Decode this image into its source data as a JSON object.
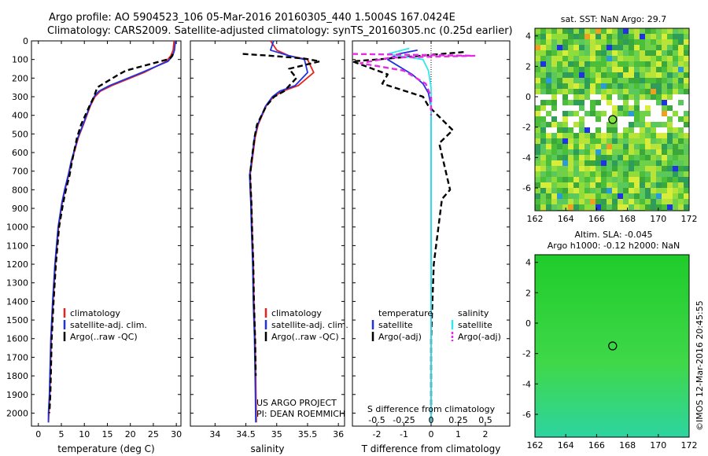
{
  "title": {
    "line1": "Argo profile: AO 5904523_106 05-Mar-2016 20160305_440 1.5004S 167.0424E",
    "line2": "Climatology: CARS2009. Satellite-adjusted climatology: synTS_20160305.nc (0.25d earlier)"
  },
  "credit": "©IMOS 12-Mar-2016 20:45:55",
  "project": {
    "line1": "US ARGO PROJECT",
    "line2": "PI: DEAN ROEMMICH"
  },
  "colors": {
    "clim": "#e8221f",
    "sat": "#1f33e0",
    "argo": "#000000",
    "salt_sat": "#33e6ee",
    "salt_argo": "#e52be5"
  },
  "chart_data": [
    {
      "id": "temperature",
      "type": "line",
      "xlabel": "temperature (deg C)",
      "xlim": [
        -1.5,
        31
      ],
      "ylim": [
        0,
        2070
      ],
      "xticks": [
        0,
        5,
        10,
        15,
        20,
        25,
        30
      ],
      "yticks": [
        0,
        100,
        200,
        300,
        400,
        500,
        600,
        700,
        800,
        900,
        1000,
        1100,
        1200,
        1300,
        1400,
        1500,
        1600,
        1700,
        1800,
        1900,
        2000
      ],
      "legend": {
        "position": "lower-right",
        "entries": [
          "climatology",
          "satellite-adj. clim.",
          "Argo(..raw -QC)"
        ]
      },
      "series": [
        {
          "name": "climatology",
          "style": "solid",
          "color": "#e8221f",
          "x": [
            29.5,
            29.3,
            28.8,
            27.8,
            23,
            16,
            13.5,
            12.3,
            11.3,
            9.8,
            8.7,
            7.2,
            6.6,
            5.8,
            5.2,
            4.4,
            3.7,
            3.2,
            2.8,
            2.6,
            2.5,
            2.4,
            2.3,
            2.2
          ],
          "y": [
            0,
            50,
            80,
            110,
            170,
            240,
            270,
            300,
            350,
            450,
            520,
            650,
            720,
            800,
            870,
            1000,
            1200,
            1400,
            1600,
            1800,
            1900,
            1950,
            2000,
            2050
          ]
        },
        {
          "name": "satellite-adj. clim.",
          "style": "solid",
          "color": "#1f33e0",
          "x": [
            29.8,
            29.6,
            29.2,
            28.2,
            22.5,
            15.5,
            13.2,
            12.1,
            11.2,
            9.7,
            8.6,
            7.1,
            6.5,
            5.7,
            5.1,
            4.3,
            3.6,
            3.1,
            2.7,
            2.5,
            2.4,
            2.3,
            2.2,
            2.2
          ],
          "y": [
            0,
            50,
            80,
            110,
            170,
            240,
            270,
            300,
            350,
            450,
            520,
            650,
            720,
            800,
            870,
            1000,
            1200,
            1400,
            1600,
            1800,
            1900,
            1950,
            2000,
            2050
          ]
        },
        {
          "name": "Argo(..raw -QC)",
          "style": "dashed",
          "color": "#000000",
          "x": [
            29.2,
            29.1,
            28.8,
            28,
            19,
            17.5,
            12.8,
            12.1,
            11.1,
            9.3,
            8.4,
            7.3,
            6.8,
            6,
            5.4,
            4.5,
            3.8,
            3.3,
            2.9,
            2.7,
            2.6,
            2.4
          ],
          "y": [
            70,
            80,
            90,
            100,
            160,
            180,
            250,
            300,
            350,
            450,
            520,
            650,
            720,
            800,
            870,
            1000,
            1200,
            1400,
            1600,
            1800,
            1900,
            2000
          ]
        }
      ]
    },
    {
      "id": "salinity",
      "type": "line",
      "xlabel": "salinity",
      "xlim": [
        33.6,
        36.1
      ],
      "ylim": [
        0,
        2070
      ],
      "xticks": [
        34,
        34.5,
        35,
        35.5,
        36
      ],
      "legend": {
        "position": "lower-right",
        "entries": [
          "climatology",
          "satellite-adj. clim.",
          "Argo(..raw -QC)"
        ]
      },
      "series": [
        {
          "name": "climatology",
          "style": "solid",
          "color": "#e8221f",
          "x": [
            34.9,
            35,
            35.2,
            35.5,
            35.6,
            35.35,
            35.1,
            34.95,
            34.83,
            34.7,
            34.65,
            34.6,
            34.57,
            34.58,
            34.59,
            34.6,
            34.62,
            34.63,
            34.65,
            34.66,
            34.67
          ],
          "y": [
            0,
            50,
            80,
            100,
            170,
            240,
            270,
            300,
            350,
            450,
            520,
            650,
            720,
            800,
            870,
            1000,
            1200,
            1400,
            1600,
            1800,
            2050
          ]
        },
        {
          "name": "satellite-adj. clim.",
          "style": "solid",
          "color": "#1f33e0",
          "x": [
            34.95,
            34.9,
            35.2,
            35.45,
            35.5,
            35.3,
            35.05,
            34.93,
            34.82,
            34.69,
            34.64,
            34.59,
            34.56,
            34.57,
            34.58,
            34.59,
            34.61,
            34.62,
            34.64,
            34.65,
            34.66
          ],
          "y": [
            0,
            50,
            80,
            100,
            170,
            240,
            270,
            300,
            350,
            450,
            520,
            650,
            720,
            800,
            870,
            1000,
            1200,
            1400,
            1600,
            1800,
            2050
          ]
        },
        {
          "name": "Argo(..raw -QC)",
          "style": "dashed",
          "color": "#000000",
          "x": [
            34.45,
            34.9,
            35.45,
            35.7,
            35.2,
            35.32,
            35.12,
            34.96,
            34.83,
            34.68,
            34.64,
            34.59,
            34.57,
            34.58,
            34.59,
            34.6,
            34.62,
            34.63,
            34.65,
            34.66
          ],
          "y": [
            70,
            80,
            95,
            110,
            150,
            200,
            270,
            300,
            350,
            450,
            520,
            650,
            720,
            800,
            870,
            1000,
            1200,
            1400,
            1600,
            1800
          ]
        }
      ]
    },
    {
      "id": "difference",
      "type": "line",
      "xlabel": "T difference from climatology",
      "x2label": "S difference from climatology",
      "xlim": [
        -2.9,
        2.9
      ],
      "ylim": [
        0,
        2070
      ],
      "xticks": [
        -2,
        -1,
        0,
        1,
        2
      ],
      "x2ticks": [
        "-0.5",
        "-0.25",
        "0",
        "0.25",
        "0.5"
      ],
      "legend": {
        "position": "lower-center",
        "entries": [
          "temperature",
          "satellite",
          "Argo(-adj)",
          "salinity",
          "satellite",
          "Argo(-adj)"
        ]
      },
      "series": [
        {
          "name": "temperature satellite",
          "style": "solid",
          "color": "#1f33e0",
          "x": [
            -0.5,
            -1.2,
            -1.6,
            -0.7,
            -0.3,
            -0.1,
            0,
            0,
            0,
            0,
            0,
            0,
            0
          ],
          "y": [
            50,
            70,
            100,
            180,
            230,
            280,
            350,
            500,
            700,
            1000,
            1400,
            1800,
            2050
          ]
        },
        {
          "name": "temperature Argo(-adj)",
          "style": "dashed",
          "color": "#000000",
          "x": [
            1.2,
            -2.0,
            -2.9,
            -1.6,
            -1.8,
            -0.3,
            -0.1,
            0.8,
            0.3,
            0.7,
            0.4,
            0.1,
            0,
            0
          ],
          "y": [
            60,
            100,
            110,
            180,
            230,
            300,
            350,
            480,
            550,
            800,
            850,
            1200,
            1600,
            2050
          ]
        },
        {
          "name": "salinity satellite",
          "style": "solid",
          "color": "#33e6ee",
          "x": [
            -0.8,
            -1.6,
            -0.3,
            -0.1,
            0,
            0,
            0,
            0,
            0,
            0
          ],
          "y": [
            40,
            70,
            100,
            160,
            250,
            400,
            700,
            1100,
            1600,
            2050
          ]
        },
        {
          "name": "salinity Argo(-adj)",
          "style": "dashed",
          "color": "#e52be5",
          "x": [
            -2.9,
            1.6,
            -1.5,
            -2.6,
            -1.0,
            -0.2,
            0,
            0
          ],
          "y": [
            70,
            80,
            90,
            120,
            160,
            230,
            300,
            400
          ]
        }
      ]
    },
    {
      "id": "sst-map",
      "type": "heatmap",
      "title": "sat. SST: NaN Argo: 29.7",
      "xlim": [
        162,
        172
      ],
      "ylim": [
        -7.5,
        4.5
      ],
      "xticks": [
        162,
        164,
        166,
        168,
        170,
        172
      ],
      "yticks": [
        4,
        2,
        0,
        -2,
        -4,
        -6
      ],
      "marker": {
        "lon": 167.04,
        "lat": -1.5
      }
    },
    {
      "id": "sla-map",
      "type": "heatmap",
      "title": "Altim. SLA: -0.045",
      "subtitle": "Argo h1000: -0.12 h2000: NaN",
      "xlim": [
        162,
        172
      ],
      "ylim": [
        -7.5,
        4.5
      ],
      "xticks": [
        162,
        164,
        166,
        168,
        170,
        172
      ],
      "yticks": [
        4,
        2,
        0,
        -2,
        -4,
        -6
      ],
      "marker": {
        "lon": 167.04,
        "lat": -1.5
      }
    }
  ]
}
